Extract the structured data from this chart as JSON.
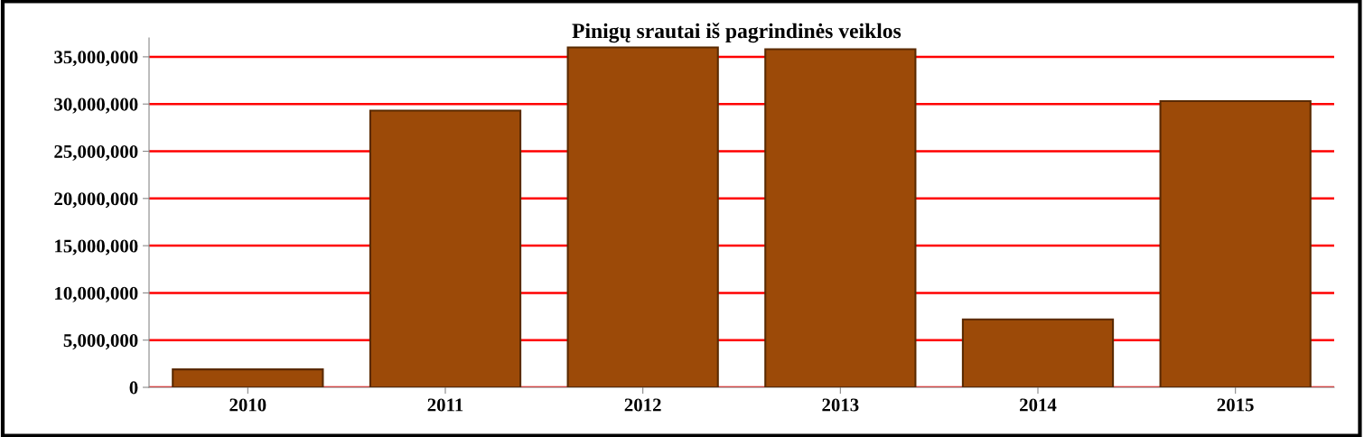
{
  "chart_data": {
    "type": "bar",
    "title": "Pinigų srautai iš pagrindinės veiklos",
    "categories": [
      "2010",
      "2011",
      "2012",
      "2013",
      "2014",
      "2015"
    ],
    "values": [
      1900000,
      29300000,
      36000000,
      35800000,
      7200000,
      30300000
    ],
    "color": "#9c4a08",
    "ylim": [
      0,
      37000000
    ],
    "yticks": [
      {
        "value": 0,
        "label": "0"
      },
      {
        "value": 5000000,
        "label": "5,000,000"
      },
      {
        "value": 10000000,
        "label": "10,000,000"
      },
      {
        "value": 15000000,
        "label": "15,000,000"
      },
      {
        "value": 20000000,
        "label": "20,000,000"
      },
      {
        "value": 25000000,
        "label": "25,000,000"
      },
      {
        "value": 30000000,
        "label": "30,000,000"
      },
      {
        "value": 35000000,
        "label": "35,000,000"
      }
    ],
    "grid": "y"
  }
}
